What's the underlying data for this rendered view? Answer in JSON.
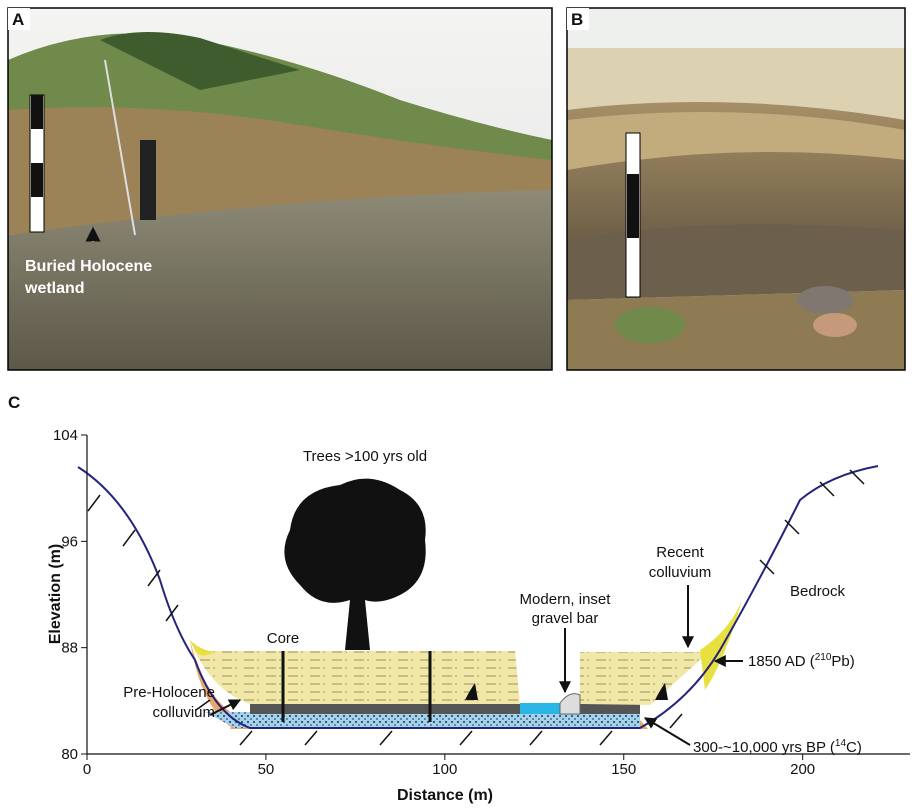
{
  "panels": [
    {
      "label": "A",
      "annotation": [
        "Buried Holocene",
        "wetland"
      ]
    },
    {
      "label": "B"
    },
    {
      "label": "C",
      "chart": {
        "type": "cross-section",
        "xlabel": "Distance (m)",
        "ylabel": "Elevation (m)",
        "xlim": [
          0,
          230
        ],
        "ylim": [
          80,
          104
        ],
        "xticks": [
          0,
          50,
          100,
          150,
          200
        ],
        "yticks": [
          80,
          88,
          96,
          104
        ],
        "annotations": {
          "trees": "Trees >100 yrs old",
          "core": "Core",
          "recent": [
            "Recent",
            "colluvium"
          ],
          "bedrock": "Bedrock",
          "gravel": [
            "Modern, inset",
            "gravel bar"
          ],
          "ad": {
            "text": "1850 AD (",
            "sup": "210",
            "tail": "Pb)"
          },
          "pre": [
            "Pre-Holocene",
            "colluvium"
          ],
          "bp": {
            "text": "300-~10,000 yrs BP (",
            "sup": "14",
            "tail": "C)"
          }
        }
      }
    }
  ]
}
